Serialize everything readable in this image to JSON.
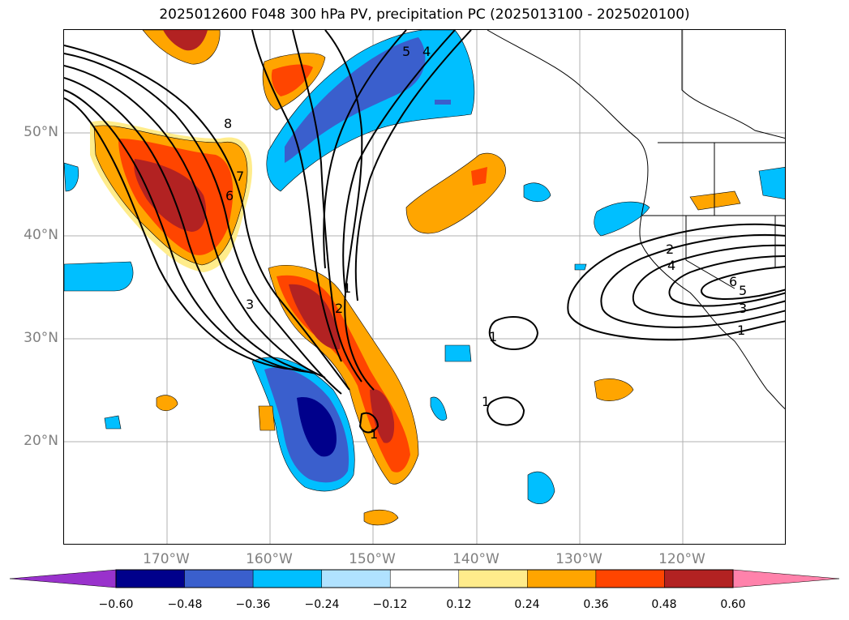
{
  "title": "2025012600 F048 300 hPa PV, precipitation PC (2025013100 - 2025020100)",
  "map": {
    "lat_labels": [
      "50°N",
      "40°N",
      "30°N",
      "20°N"
    ],
    "lon_labels": [
      "170°W",
      "160°W",
      "150°W",
      "140°W",
      "130°W",
      "120°W"
    ],
    "contour_labels": [
      "8",
      "7",
      "6",
      "5",
      "4",
      "3",
      "2",
      "1",
      "1",
      "1",
      "1",
      "2",
      "4",
      "6",
      "5",
      "3",
      "1"
    ]
  },
  "colorbar": {
    "ticks": [
      "−0.60",
      "−0.48",
      "−0.36",
      "−0.24",
      "−0.12",
      "0.12",
      "0.24",
      "0.36",
      "0.48",
      "0.60"
    ],
    "colors": [
      "#9932cc",
      "#00008b",
      "#3a5fcd",
      "#00bfff",
      "#b0e2ff",
      "#ffffff",
      "#ffec8b",
      "#ffa500",
      "#ff4500",
      "#b22222",
      "#ff82ab"
    ]
  }
}
